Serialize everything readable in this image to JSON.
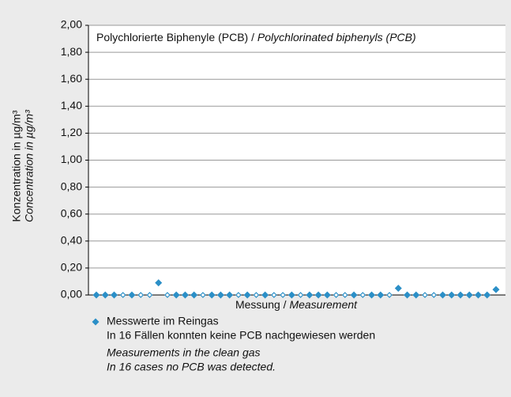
{
  "chart_data": {
    "type": "scatter",
    "title": {
      "de": "Polychlorierte Biphenyle (PCB) /",
      "en": "Polychlorinated biphenyls (PCB)"
    },
    "ylabel": {
      "de": "Konzentration in µg/m³",
      "en": "Concentration in µg/m³"
    },
    "xlabel": {
      "de": "Messung /",
      "en": "Measurement"
    },
    "ylim": [
      0,
      2
    ],
    "yticks": [
      {
        "value": 0,
        "label": "0,00"
      },
      {
        "value": 0.2,
        "label": "0,20"
      },
      {
        "value": 0.4,
        "label": "0,40"
      },
      {
        "value": 0.6,
        "label": "0,60"
      },
      {
        "value": 0.8,
        "label": "0,80"
      },
      {
        "value": 1,
        "label": "1,00"
      },
      {
        "value": 1.2,
        "label": "1,20"
      },
      {
        "value": 1.4,
        "label": "1,40"
      },
      {
        "value": 1.6,
        "label": "1,60"
      },
      {
        "value": 1.8,
        "label": "1,80"
      },
      {
        "value": 2,
        "label": "2,00"
      }
    ],
    "grid": true,
    "series": [
      {
        "name": "Messwerte im Reingas",
        "color": "#2b8fc7",
        "values": [
          0,
          0,
          0,
          0,
          0,
          0,
          0,
          0.09,
          0,
          0,
          0,
          0,
          0,
          0,
          0,
          0,
          0,
          0,
          0,
          0,
          0,
          0,
          0,
          0,
          0,
          0,
          0,
          0,
          0,
          0,
          0,
          0,
          0,
          0,
          0.05,
          0,
          0,
          0,
          0,
          0,
          0,
          0,
          0,
          0,
          0,
          0.04
        ],
        "detected": [
          true,
          true,
          true,
          false,
          true,
          false,
          false,
          true,
          false,
          true,
          true,
          true,
          false,
          true,
          true,
          true,
          false,
          true,
          false,
          true,
          false,
          false,
          true,
          false,
          true,
          true,
          true,
          false,
          false,
          true,
          false,
          true,
          true,
          false,
          true,
          true,
          true,
          false,
          false,
          true,
          true,
          true,
          true,
          true,
          true,
          true
        ]
      }
    ],
    "legend_notes": [
      "In 16 Fällen konnten keine PCB nachgewiesen werden",
      "Measurements in the clean gas",
      "In 16 cases no PCB was detected."
    ]
  }
}
